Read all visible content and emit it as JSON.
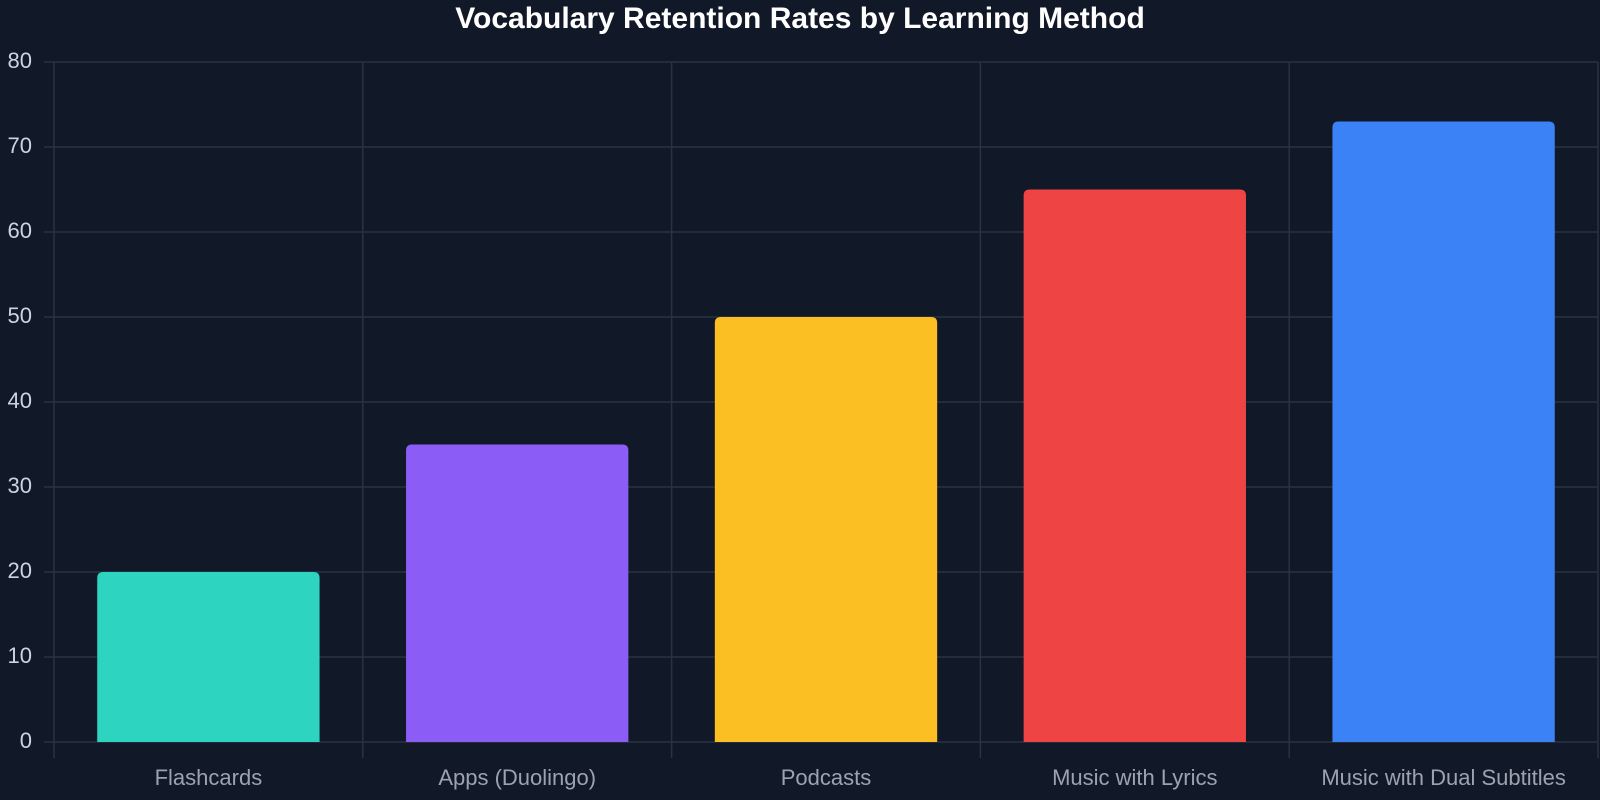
{
  "chart_data": {
    "type": "bar",
    "title": "Vocabulary Retention Rates by Learning Method",
    "categories": [
      "Flashcards",
      "Apps (Duolingo)",
      "Podcasts",
      "Music with Lyrics",
      "Music with Dual Subtitles"
    ],
    "values": [
      20,
      35,
      50,
      65,
      73
    ],
    "colors": [
      "#2dd4bf",
      "#8b5cf6",
      "#fbbf24",
      "#ef4444",
      "#3b82f6"
    ],
    "ylim": [
      0,
      80
    ],
    "yticks": [
      0,
      10,
      20,
      30,
      40,
      50,
      60,
      70,
      80
    ],
    "grid": true
  }
}
